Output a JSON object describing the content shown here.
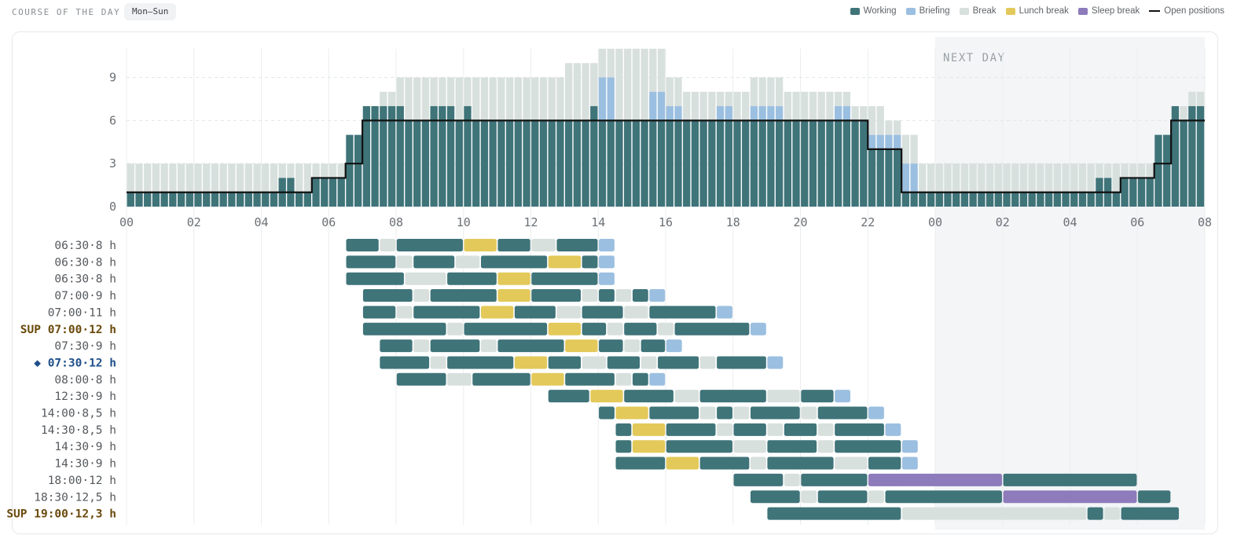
{
  "header": {
    "title": "COURSE OF THE DAY",
    "range_chip": "Mon–Sun"
  },
  "legend": [
    {
      "label": "Working",
      "color": "#3f7479",
      "kind": "swatch"
    },
    {
      "label": "Briefing",
      "color": "#9bbfe0",
      "kind": "swatch"
    },
    {
      "label": "Break",
      "color": "#d8e0de",
      "kind": "swatch"
    },
    {
      "label": "Lunch break",
      "color": "#e3c95a",
      "kind": "swatch"
    },
    {
      "label": "Sleep break",
      "color": "#8e7bbb",
      "kind": "swatch"
    },
    {
      "label": "Open positions",
      "color": "#111111",
      "kind": "line"
    }
  ],
  "chart_data": {
    "type": "bar",
    "stacked": true,
    "next_day_label": "NEXT DAY",
    "next_day_start_hour": 24,
    "x_ticks": [
      "00",
      "02",
      "04",
      "06",
      "08",
      "10",
      "12",
      "14",
      "16",
      "18",
      "20",
      "22",
      "00",
      "02",
      "04",
      "06",
      "08"
    ],
    "x_range_hours": [
      0,
      32
    ],
    "y_ticks": [
      0,
      3,
      6,
      9
    ],
    "ylim": [
      0,
      11
    ],
    "colors": {
      "working": "#3f7479",
      "briefing": "#9bbfe0",
      "break": "#d8e0de",
      "lunch": "#e3c95a",
      "sleep": "#8e7bbb"
    },
    "bin_hours": 0.25,
    "stacks": {
      "working": [
        [
          0,
          4.5,
          1
        ],
        [
          4.5,
          5,
          2
        ],
        [
          5,
          5.5,
          1
        ],
        [
          5.5,
          6.5,
          2
        ],
        [
          6.5,
          7,
          5
        ],
        [
          7,
          7.5,
          7
        ],
        [
          7.5,
          8.25,
          7
        ],
        [
          8.25,
          9,
          6
        ],
        [
          9,
          9.75,
          7
        ],
        [
          9.75,
          10,
          6
        ],
        [
          10,
          10.25,
          7
        ],
        [
          10.25,
          13.75,
          6
        ],
        [
          13.75,
          14,
          7
        ],
        [
          14,
          14.5,
          6
        ],
        [
          14.5,
          15.5,
          6
        ],
        [
          15.5,
          16,
          6
        ],
        [
          16,
          18,
          6
        ],
        [
          18,
          20,
          6
        ],
        [
          20,
          21,
          6
        ],
        [
          21,
          22,
          6
        ],
        [
          22,
          22.5,
          4
        ],
        [
          22.5,
          23,
          4
        ],
        [
          23,
          23.5,
          1
        ],
        [
          23.5,
          28.75,
          1
        ],
        [
          28.75,
          29.25,
          2
        ],
        [
          29.25,
          29.5,
          1
        ],
        [
          29.5,
          30.5,
          2
        ],
        [
          30.5,
          31,
          5
        ],
        [
          31,
          31.25,
          7
        ],
        [
          31.25,
          31.5,
          6
        ],
        [
          31.5,
          32,
          7
        ]
      ],
      "briefing": [
        [
          14,
          14.5,
          3
        ],
        [
          15.5,
          16,
          2
        ],
        [
          16,
          16.5,
          1
        ],
        [
          17.5,
          18,
          1
        ],
        [
          18.5,
          19.5,
          1
        ],
        [
          21,
          21.5,
          1
        ],
        [
          22,
          23,
          1
        ],
        [
          23,
          23.5,
          2
        ]
      ],
      "total": [
        [
          0,
          6.5,
          3
        ],
        [
          6.5,
          7,
          5
        ],
        [
          7,
          7.5,
          7
        ],
        [
          7.5,
          8,
          8
        ],
        [
          8,
          13,
          9
        ],
        [
          13,
          14,
          10
        ],
        [
          14,
          16,
          11
        ],
        [
          16,
          16.5,
          9
        ],
        [
          16.5,
          18.5,
          8
        ],
        [
          18.5,
          19.5,
          9
        ],
        [
          19.5,
          21.5,
          8
        ],
        [
          21.5,
          22.5,
          7
        ],
        [
          22.5,
          23,
          6
        ],
        [
          23,
          23.5,
          5
        ],
        [
          23.5,
          30.5,
          3
        ],
        [
          30.5,
          31,
          5
        ],
        [
          31,
          31.5,
          7
        ],
        [
          31.5,
          32,
          8
        ]
      ]
    },
    "open_positions": [
      [
        0,
        1
      ],
      [
        5.5,
        2
      ],
      [
        6.5,
        3
      ],
      [
        7,
        6
      ],
      [
        22,
        4
      ],
      [
        23,
        1
      ],
      [
        29.5,
        2
      ],
      [
        30.5,
        3
      ],
      [
        31,
        6
      ],
      [
        32,
        6
      ]
    ]
  },
  "shifts": [
    {
      "label": "06:30·8 h",
      "style": "normal",
      "segments": [
        [
          "w",
          6.5,
          7.5
        ],
        [
          "b",
          7.5,
          8
        ],
        [
          "w",
          8,
          10
        ],
        [
          "l",
          10,
          11
        ],
        [
          "w",
          11,
          12
        ],
        [
          "b",
          12,
          12.75
        ],
        [
          "w",
          12.75,
          14
        ],
        [
          "f",
          14,
          14.5
        ]
      ]
    },
    {
      "label": "06:30·8 h",
      "style": "normal",
      "segments": [
        [
          "w",
          6.5,
          8
        ],
        [
          "b",
          8,
          8.5
        ],
        [
          "w",
          8.5,
          9.75
        ],
        [
          "b",
          9.75,
          10.5
        ],
        [
          "w",
          10.5,
          12.5
        ],
        [
          "l",
          12.5,
          13.5
        ],
        [
          "w",
          13.5,
          14
        ],
        [
          "f",
          14,
          14.5
        ]
      ]
    },
    {
      "label": "06:30·8 h",
      "style": "normal",
      "segments": [
        [
          "w",
          6.5,
          8.25
        ],
        [
          "b",
          8.25,
          9.5
        ],
        [
          "w",
          9.5,
          11
        ],
        [
          "l",
          11,
          12
        ],
        [
          "w",
          12,
          14
        ],
        [
          "f",
          14,
          14.5
        ]
      ]
    },
    {
      "label": "07:00·9 h",
      "style": "normal",
      "segments": [
        [
          "w",
          7,
          8.5
        ],
        [
          "b",
          8.5,
          9
        ],
        [
          "w",
          9,
          11
        ],
        [
          "l",
          11,
          12
        ],
        [
          "w",
          12,
          13.5
        ],
        [
          "b",
          13.5,
          14
        ],
        [
          "w",
          14,
          14.5
        ],
        [
          "b",
          14.5,
          15
        ],
        [
          "w",
          15,
          15.5
        ],
        [
          "f",
          15.5,
          16
        ]
      ]
    },
    {
      "label": "07:00·11 h",
      "style": "normal",
      "segments": [
        [
          "w",
          7,
          8
        ],
        [
          "b",
          8,
          8.5
        ],
        [
          "w",
          8.5,
          10.5
        ],
        [
          "l",
          10.5,
          11.5
        ],
        [
          "w",
          11.5,
          12.75
        ],
        [
          "b",
          12.75,
          13.5
        ],
        [
          "w",
          13.5,
          14.75
        ],
        [
          "b",
          14.75,
          15.5
        ],
        [
          "w",
          15.5,
          17.5
        ],
        [
          "f",
          17.5,
          18
        ]
      ]
    },
    {
      "label": "SUP 07:00·12 h",
      "style": "sup",
      "segments": [
        [
          "w",
          7,
          9.5
        ],
        [
          "b",
          9.5,
          10
        ],
        [
          "w",
          10,
          12.5
        ],
        [
          "l",
          12.5,
          13.5
        ],
        [
          "w",
          13.5,
          14.25
        ],
        [
          "b",
          14.25,
          14.75
        ],
        [
          "w",
          14.75,
          15.75
        ],
        [
          "b",
          15.75,
          16.25
        ],
        [
          "w",
          16.25,
          18.5
        ],
        [
          "f",
          18.5,
          19
        ]
      ]
    },
    {
      "label": "07:30·9 h",
      "style": "normal",
      "segments": [
        [
          "w",
          7.5,
          8.5
        ],
        [
          "b",
          8.5,
          9
        ],
        [
          "w",
          9,
          10.5
        ],
        [
          "b",
          10.5,
          11
        ],
        [
          "w",
          11,
          13
        ],
        [
          "l",
          13,
          14
        ],
        [
          "w",
          14,
          14.75
        ],
        [
          "b",
          14.75,
          15.25
        ],
        [
          "w",
          15.25,
          16
        ],
        [
          "f",
          16,
          16.5
        ]
      ]
    },
    {
      "label": "◆ 07:30·12 h",
      "style": "highlight",
      "segments": [
        [
          "w",
          7.5,
          9
        ],
        [
          "b",
          9,
          9.5
        ],
        [
          "w",
          9.5,
          11.5
        ],
        [
          "l",
          11.5,
          12.5
        ],
        [
          "w",
          12.5,
          13.5
        ],
        [
          "b",
          13.5,
          14.25
        ],
        [
          "w",
          14.25,
          15.25
        ],
        [
          "b",
          15.25,
          15.75
        ],
        [
          "w",
          15.75,
          17
        ],
        [
          "b",
          17,
          17.5
        ],
        [
          "w",
          17.5,
          19
        ],
        [
          "f",
          19,
          19.5
        ]
      ]
    },
    {
      "label": "08:00·8 h",
      "style": "normal",
      "segments": [
        [
          "w",
          8,
          9.5
        ],
        [
          "b",
          9.5,
          10.25
        ],
        [
          "w",
          10.25,
          12
        ],
        [
          "l",
          12,
          13
        ],
        [
          "w",
          13,
          14.5
        ],
        [
          "b",
          14.5,
          15
        ],
        [
          "w",
          15,
          15.5
        ],
        [
          "f",
          15.5,
          16
        ]
      ]
    },
    {
      "label": "12:30·9 h",
      "style": "normal",
      "segments": [
        [
          "w",
          12.5,
          13.75
        ],
        [
          "l",
          13.75,
          14.75
        ],
        [
          "w",
          14.75,
          16.25
        ],
        [
          "b",
          16.25,
          17
        ],
        [
          "w",
          17,
          19
        ],
        [
          "b",
          19,
          20
        ],
        [
          "w",
          20,
          21
        ],
        [
          "f",
          21,
          21.5
        ]
      ]
    },
    {
      "label": "14:00·8,5 h",
      "style": "normal",
      "segments": [
        [
          "w",
          14,
          14.5
        ],
        [
          "l",
          14.5,
          15.5
        ],
        [
          "w",
          15.5,
          17
        ],
        [
          "b",
          17,
          17.5
        ],
        [
          "w",
          17.5,
          18
        ],
        [
          "b",
          18,
          18.5
        ],
        [
          "w",
          18.5,
          20
        ],
        [
          "b",
          20,
          20.5
        ],
        [
          "w",
          20.5,
          22
        ],
        [
          "f",
          22,
          22.5
        ]
      ]
    },
    {
      "label": "14:30·8,5 h",
      "style": "normal",
      "segments": [
        [
          "w",
          14.5,
          15
        ],
        [
          "l",
          15,
          16
        ],
        [
          "w",
          16,
          17.5
        ],
        [
          "b",
          17.5,
          18
        ],
        [
          "w",
          18,
          19
        ],
        [
          "b",
          19,
          19.5
        ],
        [
          "w",
          19.5,
          20.5
        ],
        [
          "b",
          20.5,
          21
        ],
        [
          "w",
          21,
          22.5
        ],
        [
          "f",
          22.5,
          23
        ]
      ]
    },
    {
      "label": "14:30·9 h",
      "style": "normal",
      "segments": [
        [
          "w",
          14.5,
          15
        ],
        [
          "l",
          15,
          16
        ],
        [
          "w",
          16,
          18
        ],
        [
          "b",
          18,
          19
        ],
        [
          "w",
          19,
          20.5
        ],
        [
          "b",
          20.5,
          21
        ],
        [
          "w",
          21,
          23
        ],
        [
          "f",
          23,
          23.5
        ]
      ]
    },
    {
      "label": "14:30·9 h",
      "style": "normal",
      "segments": [
        [
          "w",
          14.5,
          16
        ],
        [
          "l",
          16,
          17
        ],
        [
          "w",
          17,
          18.5
        ],
        [
          "b",
          18.5,
          19
        ],
        [
          "w",
          19,
          21
        ],
        [
          "b",
          21,
          22
        ],
        [
          "w",
          22,
          23
        ],
        [
          "f",
          23,
          23.5
        ]
      ]
    },
    {
      "label": "18:00·12 h",
      "style": "normal",
      "segments": [
        [
          "w",
          18,
          19.5
        ],
        [
          "b",
          19.5,
          20
        ],
        [
          "w",
          20,
          22
        ],
        [
          "s",
          22,
          26
        ],
        [
          "w",
          26,
          30
        ]
      ]
    },
    {
      "label": "18:30·12,5 h",
      "style": "normal",
      "segments": [
        [
          "w",
          18.5,
          20
        ],
        [
          "b",
          20,
          20.5
        ],
        [
          "w",
          20.5,
          22
        ],
        [
          "b",
          22,
          22.5
        ],
        [
          "w",
          22.5,
          26
        ],
        [
          "s",
          26,
          30
        ],
        [
          "w",
          30,
          31
        ]
      ]
    },
    {
      "label": "SUP 19:00·12,3 h",
      "style": "sup",
      "segments": [
        [
          "w",
          19,
          23
        ],
        [
          "b",
          23,
          28.5
        ],
        [
          "w",
          28.5,
          29
        ],
        [
          "b",
          29,
          29.5
        ],
        [
          "w",
          29.5,
          31.25
        ]
      ]
    }
  ]
}
